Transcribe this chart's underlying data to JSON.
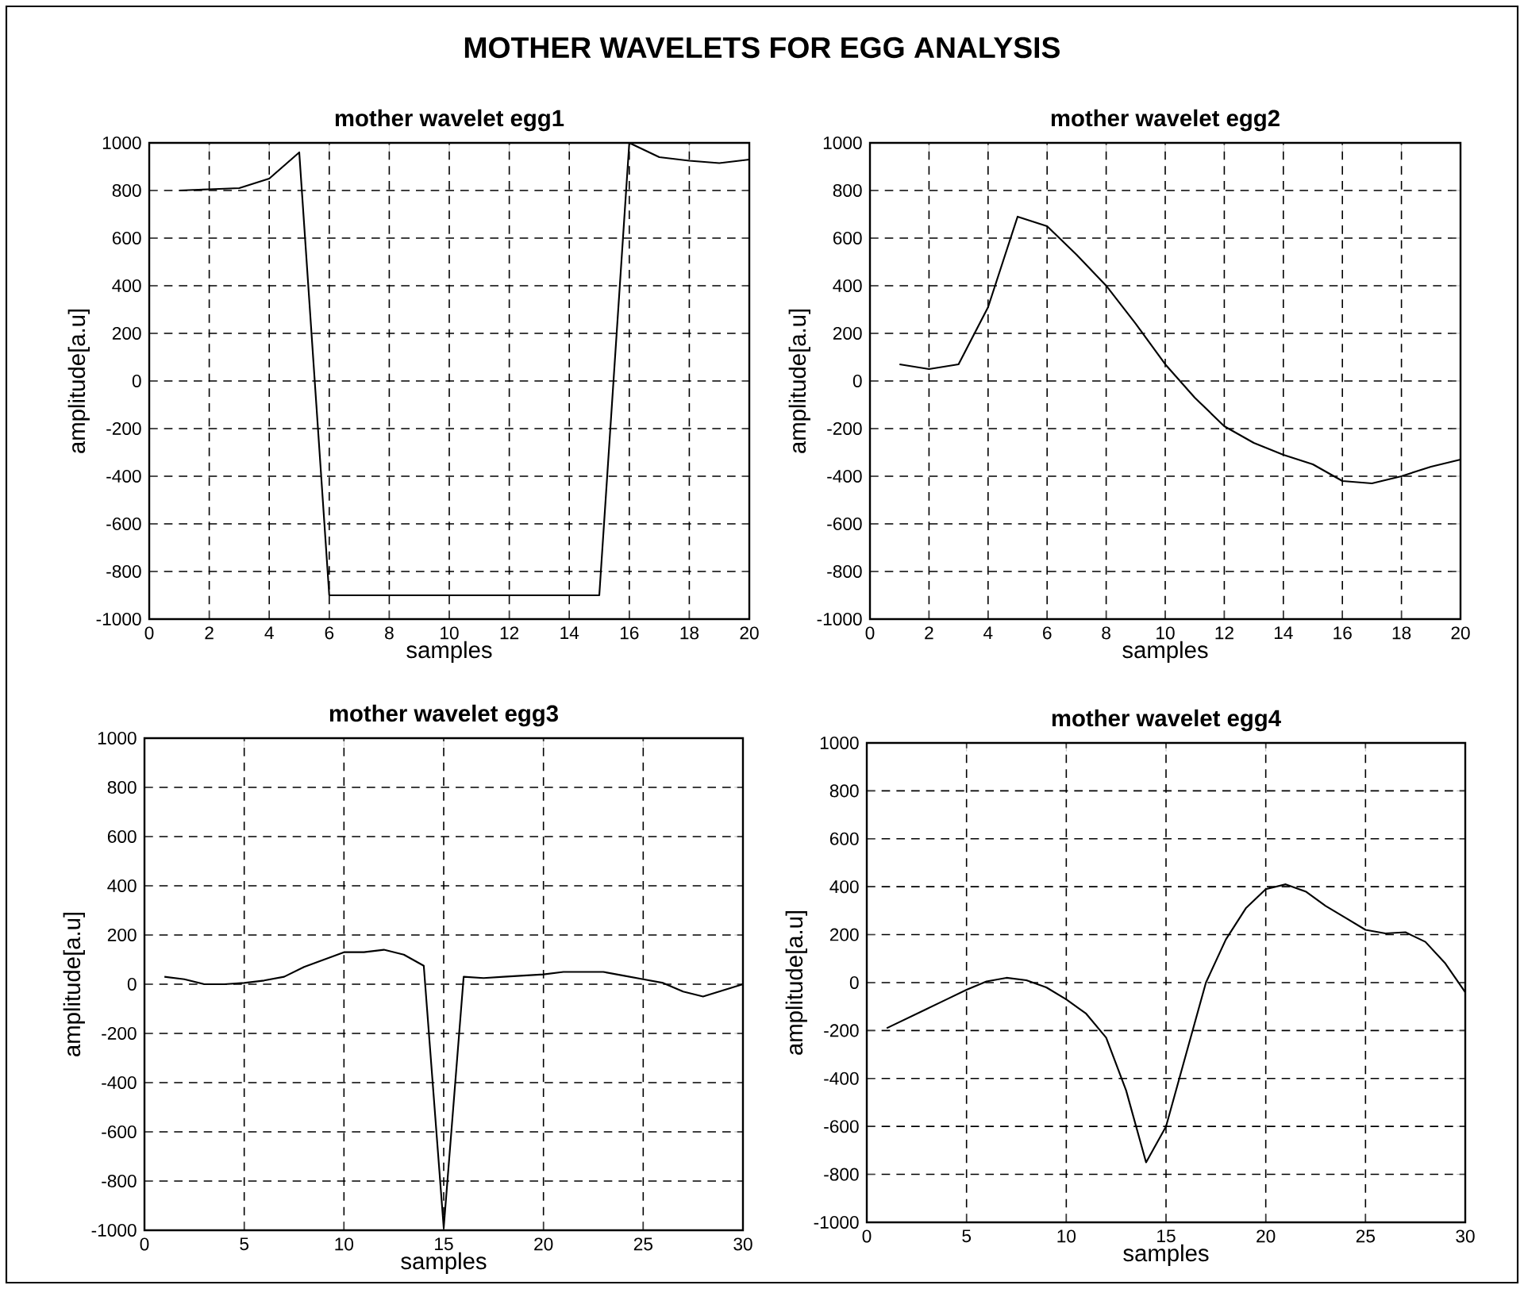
{
  "chart_data": [
    {
      "type": "line",
      "title": "mother wavelet egg1",
      "xlabel": "samples",
      "ylabel": "amplitude[a.u]",
      "annotations": [
        "MOTHER WAVELETS FOR EGG ANALYSIS"
      ],
      "grid": true,
      "xlim": [
        0,
        20
      ],
      "ylim": [
        -1000,
        1000
      ],
      "xticks": [
        0,
        2,
        4,
        6,
        8,
        10,
        12,
        14,
        16,
        18,
        20
      ],
      "yticks": [
        -1000,
        -800,
        -600,
        -400,
        -200,
        0,
        200,
        400,
        600,
        800,
        1000
      ],
      "series": [
        {
          "color": "#000000",
          "x": [
            1,
            2,
            3,
            4,
            5,
            6,
            7,
            8,
            9,
            10,
            11,
            12,
            13,
            14,
            15,
            16,
            17,
            18,
            19,
            20
          ],
          "values": [
            800,
            805,
            810,
            850,
            960,
            -900,
            -900,
            -900,
            -900,
            -900,
            -900,
            -900,
            -900,
            -900,
            -900,
            1000,
            940,
            925,
            915,
            930
          ]
        }
      ]
    },
    {
      "type": "line",
      "title": "mother wavelet egg2",
      "xlabel": "samples",
      "ylabel": "amplitude[a.u]",
      "grid": true,
      "xlim": [
        0,
        20
      ],
      "ylim": [
        -1000,
        1000
      ],
      "xticks": [
        0,
        2,
        4,
        6,
        8,
        10,
        12,
        14,
        16,
        18,
        20
      ],
      "yticks": [
        -1000,
        -800,
        -600,
        -400,
        -200,
        0,
        200,
        400,
        600,
        800,
        1000
      ],
      "series": [
        {
          "color": "#000000",
          "x": [
            1,
            2,
            3,
            4,
            5,
            6,
            7,
            8,
            9,
            10,
            11,
            12,
            13,
            14,
            15,
            16,
            17,
            18,
            19,
            20
          ],
          "values": [
            70,
            50,
            70,
            310,
            690,
            650,
            530,
            400,
            240,
            70,
            -70,
            -190,
            -260,
            -310,
            -350,
            -420,
            -430,
            -400,
            -360,
            -330
          ]
        }
      ]
    },
    {
      "type": "line",
      "title": "mother wavelet egg3",
      "xlabel": "samples",
      "ylabel": "amplitude[a.u]",
      "grid": true,
      "xlim": [
        0,
        30
      ],
      "ylim": [
        -1000,
        1000
      ],
      "xticks": [
        0,
        5,
        10,
        15,
        20,
        25,
        30
      ],
      "yticks": [
        -1000,
        -800,
        -600,
        -400,
        -200,
        0,
        200,
        400,
        600,
        800,
        1000
      ],
      "series": [
        {
          "color": "#000000",
          "x": [
            1,
            2,
            3,
            4,
            5,
            6,
            7,
            8,
            9,
            10,
            11,
            12,
            13,
            14,
            15,
            16,
            17,
            18,
            19,
            20,
            21,
            22,
            23,
            24,
            25,
            26,
            27,
            28,
            29,
            30
          ],
          "values": [
            30,
            20,
            0,
            0,
            5,
            15,
            30,
            70,
            100,
            130,
            130,
            140,
            120,
            75,
            -990,
            30,
            25,
            30,
            35,
            40,
            50,
            50,
            50,
            35,
            20,
            5,
            -30,
            -50,
            -25,
            0
          ]
        }
      ]
    },
    {
      "type": "line",
      "title": "mother wavelet egg4",
      "xlabel": "samples",
      "ylabel": "amplitude[a.u]",
      "grid": true,
      "xlim": [
        0,
        30
      ],
      "ylim": [
        -1000,
        1000
      ],
      "xticks": [
        0,
        5,
        10,
        15,
        20,
        25,
        30
      ],
      "yticks": [
        -1000,
        -800,
        -600,
        -400,
        -200,
        0,
        200,
        400,
        600,
        800,
        1000
      ],
      "series": [
        {
          "color": "#000000",
          "x": [
            1,
            2,
            3,
            4,
            5,
            6,
            7,
            8,
            9,
            10,
            11,
            12,
            13,
            14,
            15,
            16,
            17,
            18,
            19,
            20,
            21,
            22,
            23,
            24,
            25,
            26,
            27,
            28,
            29,
            30
          ],
          "values": [
            -190,
            -150,
            -110,
            -70,
            -30,
            5,
            20,
            10,
            -20,
            -70,
            -130,
            -230,
            -450,
            -750,
            -600,
            -300,
            0,
            180,
            310,
            390,
            410,
            380,
            320,
            270,
            220,
            205,
            210,
            170,
            80,
            -40
          ]
        }
      ]
    }
  ]
}
